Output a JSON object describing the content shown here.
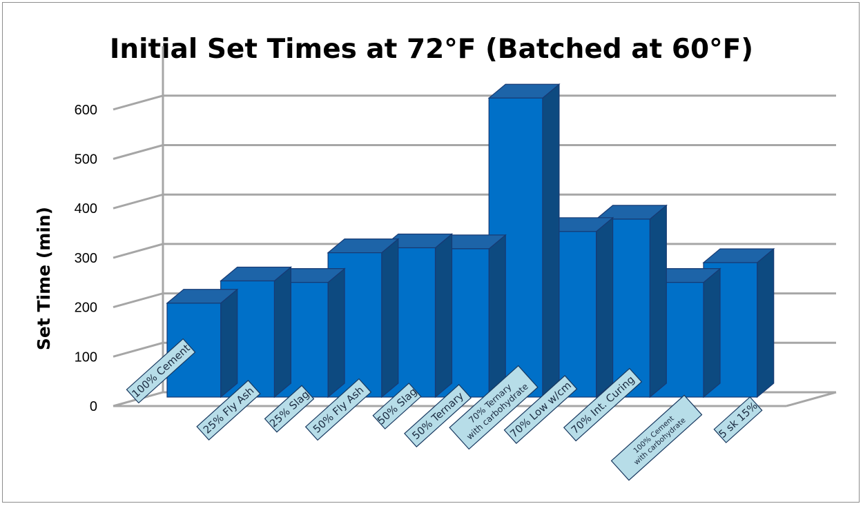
{
  "chart_data": {
    "type": "bar",
    "title": "Initial Set Times at 72°F (Batched at 60°F)",
    "xlabel": "",
    "ylabel": "Set Time (min)",
    "ylim": [
      0,
      600
    ],
    "yticks": [
      0,
      100,
      200,
      300,
      400,
      500,
      600
    ],
    "grid": true,
    "legend": "none",
    "style": "3d-columns",
    "categories": [
      "100% Cement",
      "25% Fly Ash",
      "25% Slag",
      "50% Fly Ash",
      "50% Slag",
      "50% Ternary",
      "70% Ternary with carbohydrate",
      "70% Low w/cm",
      "70% Int. Curing",
      "100% Cement with carbohydrate",
      "5 sk 15%"
    ],
    "values": [
      190,
      235,
      232,
      292,
      302,
      300,
      605,
      335,
      360,
      232,
      272
    ],
    "colors": {
      "bar_front": "#0070c8",
      "bar_top": "#1d64a8",
      "bar_side": "#0d4a80",
      "bar_edge": "#173a73",
      "label_box": "#b7dde8",
      "label_border": "#17375e",
      "grid": "#a6a6a6"
    }
  }
}
